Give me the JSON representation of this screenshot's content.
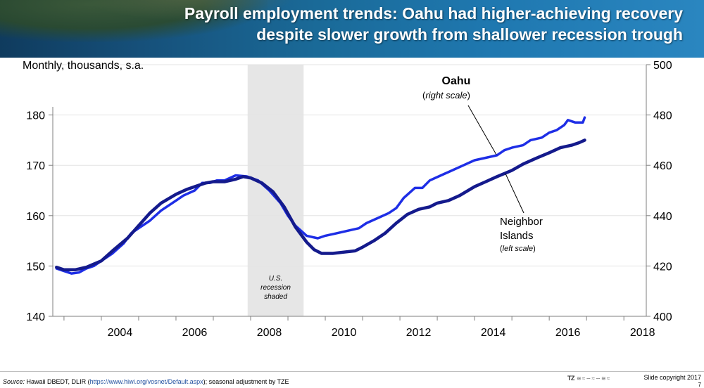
{
  "header": {
    "title_line1": "Payroll employment trends:  Oahu had higher-achieving recovery",
    "title_line2": "despite slower growth from shallower recession trough"
  },
  "colors": {
    "oahu": "#141a8c",
    "neighbor": "#1e2ee6",
    "recession": "#e6e6e6"
  },
  "chart_data": {
    "type": "line",
    "unit_label": "Monthly, thousands, s.a.",
    "xlim": [
      2002.7,
      2018.6
    ],
    "x_ticks": [
      2004,
      2006,
      2008,
      2010,
      2012,
      2014,
      2016,
      2018
    ],
    "left_axis": {
      "ylim": [
        140,
        190
      ],
      "ticks": [
        140,
        150,
        160,
        170,
        180
      ]
    },
    "right_axis": {
      "ylim": [
        400,
        500
      ],
      "ticks": [
        400,
        420,
        440,
        460,
        480,
        500
      ]
    },
    "recession": {
      "start": 2007.92,
      "end": 2009.42,
      "label": [
        "U.S.",
        "recession",
        "shaded"
      ]
    },
    "series": [
      {
        "name": "Oahu",
        "scale_label": "right scale",
        "axis": "right",
        "points": [
          [
            2002.8,
            419.5
          ],
          [
            2003.0,
            418.5
          ],
          [
            2003.3,
            418.5
          ],
          [
            2003.6,
            419.5
          ],
          [
            2004.0,
            422.0
          ],
          [
            2004.3,
            426.0
          ],
          [
            2004.7,
            431.0
          ],
          [
            2005.0,
            436.0
          ],
          [
            2005.3,
            441.0
          ],
          [
            2005.6,
            445.0
          ],
          [
            2006.0,
            448.5
          ],
          [
            2006.3,
            450.5
          ],
          [
            2006.6,
            452.0
          ],
          [
            2006.8,
            453.0
          ],
          [
            2007.0,
            453.5
          ],
          [
            2007.3,
            453.5
          ],
          [
            2007.6,
            454.5
          ],
          [
            2007.8,
            455.5
          ],
          [
            2008.0,
            455.0
          ],
          [
            2008.3,
            453.0
          ],
          [
            2008.6,
            449.5
          ],
          [
            2008.9,
            443.5
          ],
          [
            2009.2,
            435.5
          ],
          [
            2009.5,
            429.5
          ],
          [
            2009.7,
            426.5
          ],
          [
            2009.9,
            425.0
          ],
          [
            2010.2,
            425.0
          ],
          [
            2010.5,
            425.5
          ],
          [
            2010.8,
            426.0
          ],
          [
            2011.0,
            427.5
          ],
          [
            2011.3,
            430.0
          ],
          [
            2011.6,
            433.0
          ],
          [
            2011.9,
            437.0
          ],
          [
            2012.2,
            440.5
          ],
          [
            2012.5,
            442.5
          ],
          [
            2012.8,
            443.5
          ],
          [
            2013.0,
            445.0
          ],
          [
            2013.3,
            446.0
          ],
          [
            2013.6,
            448.0
          ],
          [
            2014.0,
            451.5
          ],
          [
            2014.3,
            453.5
          ],
          [
            2014.6,
            455.5
          ],
          [
            2015.0,
            458.0
          ],
          [
            2015.3,
            460.5
          ],
          [
            2015.6,
            462.5
          ],
          [
            2016.0,
            465.0
          ],
          [
            2016.3,
            467.0
          ],
          [
            2016.6,
            468.0
          ],
          [
            2016.8,
            469.0
          ],
          [
            2016.95,
            470.0
          ]
        ]
      },
      {
        "name": "Neighbor Islands",
        "label_lines": [
          "Neighbor",
          "Islands"
        ],
        "scale_label": "left scale",
        "axis": "left",
        "points": [
          [
            2002.8,
            149.5
          ],
          [
            2003.0,
            149.0
          ],
          [
            2003.2,
            148.5
          ],
          [
            2003.4,
            148.7
          ],
          [
            2003.6,
            149.5
          ],
          [
            2003.8,
            150.0
          ],
          [
            2004.0,
            151.0
          ],
          [
            2004.3,
            152.5
          ],
          [
            2004.6,
            154.5
          ],
          [
            2004.8,
            156.5
          ],
          [
            2005.0,
            157.5
          ],
          [
            2005.3,
            159.0
          ],
          [
            2005.6,
            161.0
          ],
          [
            2005.9,
            162.5
          ],
          [
            2006.2,
            164.0
          ],
          [
            2006.5,
            165.0
          ],
          [
            2006.7,
            166.5
          ],
          [
            2006.9,
            166.5
          ],
          [
            2007.1,
            167.0
          ],
          [
            2007.3,
            167.0
          ],
          [
            2007.6,
            168.0
          ],
          [
            2007.9,
            167.8
          ],
          [
            2008.2,
            167.0
          ],
          [
            2008.5,
            165.0
          ],
          [
            2008.8,
            162.5
          ],
          [
            2009.0,
            160.0
          ],
          [
            2009.2,
            158.0
          ],
          [
            2009.5,
            156.0
          ],
          [
            2009.8,
            155.5
          ],
          [
            2010.0,
            156.0
          ],
          [
            2010.3,
            156.5
          ],
          [
            2010.6,
            157.0
          ],
          [
            2010.9,
            157.5
          ],
          [
            2011.1,
            158.5
          ],
          [
            2011.4,
            159.5
          ],
          [
            2011.7,
            160.5
          ],
          [
            2011.9,
            161.5
          ],
          [
            2012.1,
            163.5
          ],
          [
            2012.4,
            165.5
          ],
          [
            2012.6,
            165.5
          ],
          [
            2012.8,
            167.0
          ],
          [
            2013.1,
            168.0
          ],
          [
            2013.4,
            169.0
          ],
          [
            2013.7,
            170.0
          ],
          [
            2014.0,
            171.0
          ],
          [
            2014.3,
            171.5
          ],
          [
            2014.6,
            172.0
          ],
          [
            2014.8,
            173.0
          ],
          [
            2015.0,
            173.5
          ],
          [
            2015.3,
            174.0
          ],
          [
            2015.5,
            175.0
          ],
          [
            2015.8,
            175.5
          ],
          [
            2016.0,
            176.5
          ],
          [
            2016.2,
            177.0
          ],
          [
            2016.4,
            178.0
          ],
          [
            2016.5,
            179.0
          ],
          [
            2016.7,
            178.5
          ],
          [
            2016.9,
            178.5
          ],
          [
            2016.95,
            179.5
          ]
        ]
      }
    ]
  },
  "labels": {
    "oahu_name": "Oahu",
    "oahu_scale": "right scale",
    "neighbor_line1": "Neighbor",
    "neighbor_line2": "Islands",
    "neighbor_scale": "left scale"
  },
  "footer": {
    "source_lead": "Source:",
    "source_text": "Hawaii DBEDT, DLIR",
    "source_url": "https://www.hiwi.org/vosnet/Default.aspx",
    "source_tail": "; seasonal adjustment by TZE",
    "copyright": "Slide copyright 2017",
    "page": "7"
  }
}
